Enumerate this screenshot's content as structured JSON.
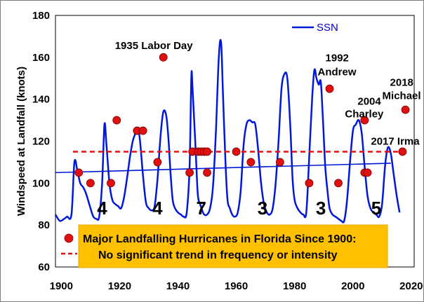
{
  "colors": {
    "ssn": "#0018d8",
    "points": "#e01010",
    "trend": "#0018d8",
    "mean": "#e01010",
    "legend_box": "#ffc000"
  },
  "chart_data": {
    "type": "scatter",
    "title": "",
    "xlabel": "",
    "ylabel": "Windspeed at Landfall (knots)",
    "xlim": [
      1898,
      2021
    ],
    "ylim": [
      60,
      180
    ],
    "xticks": [
      1900,
      1920,
      1940,
      1960,
      1980,
      2000,
      2020
    ],
    "yticks": [
      60,
      80,
      100,
      120,
      140,
      160,
      180
    ],
    "hurricanes": [
      {
        "year": 1906,
        "windspeed": 105
      },
      {
        "year": 1910,
        "windspeed": 100
      },
      {
        "year": 1917,
        "windspeed": 100
      },
      {
        "year": 1919,
        "windspeed": 130
      },
      {
        "year": 1926,
        "windspeed": 125
      },
      {
        "year": 1928,
        "windspeed": 125
      },
      {
        "year": 1933,
        "windspeed": 110
      },
      {
        "year": 1935,
        "windspeed": 160
      },
      {
        "year": 1944,
        "windspeed": 105
      },
      {
        "year": 1945,
        "windspeed": 115
      },
      {
        "year": 1947,
        "windspeed": 115
      },
      {
        "year": 1948,
        "windspeed": 115
      },
      {
        "year": 1949,
        "windspeed": 115
      },
      {
        "year": 1950,
        "windspeed": 115
      },
      {
        "year": 1950,
        "windspeed": 105
      },
      {
        "year": 1960,
        "windspeed": 115
      },
      {
        "year": 1965,
        "windspeed": 110
      },
      {
        "year": 1975,
        "windspeed": 110
      },
      {
        "year": 1985,
        "windspeed": 100
      },
      {
        "year": 1992,
        "windspeed": 145
      },
      {
        "year": 1995,
        "windspeed": 100
      },
      {
        "year": 2004,
        "windspeed": 130
      },
      {
        "year": 2004,
        "windspeed": 105
      },
      {
        "year": 2005,
        "windspeed": 105
      },
      {
        "year": 2017,
        "windspeed": 115
      },
      {
        "year": 2018,
        "windspeed": 135
      }
    ],
    "mean_line": {
      "y": 115,
      "x_start": 1904,
      "x_end": 2019
    },
    "trend_line": {
      "x": [
        1898,
        2013
      ],
      "y": [
        105,
        109.5
      ]
    },
    "ssn_series": {
      "name": "SSN",
      "x": [
        1898,
        1899.5,
        1901,
        1902,
        1903.5,
        1904.5,
        1905.5,
        1906.5,
        1907.5,
        1908.5,
        1910,
        1911,
        1912,
        1913,
        1914,
        1914.8,
        1915.5,
        1916.5,
        1917.5,
        1918.5,
        1919.5,
        1920.5,
        1921.5,
        1922.5,
        1923.5,
        1924.5,
        1925.5,
        1926.3,
        1927,
        1928,
        1929,
        1930,
        1931,
        1932,
        1933,
        1934,
        1935,
        1936,
        1936.8,
        1937.5,
        1938.2,
        1939,
        1940,
        1941,
        1942,
        1943,
        1944,
        1944.6,
        1945,
        1946,
        1946.8,
        1947.6,
        1948.3,
        1949,
        1950,
        1951,
        1952,
        1953,
        1954,
        1954.8,
        1955.5,
        1956.3,
        1957,
        1957.8,
        1958.6,
        1959.5,
        1960.5,
        1961.5,
        1962.5,
        1963.5,
        1964.5,
        1965.5,
        1966.5,
        1967.5,
        1968.5,
        1969.5,
        1970.5,
        1971.5,
        1972.5,
        1973.5,
        1974.5,
        1975.5,
        1976.5,
        1977.5,
        1978.5,
        1979.3,
        1980,
        1981,
        1982,
        1983,
        1984,
        1985,
        1986,
        1986.8,
        1987.5,
        1988.3,
        1989,
        1989.8,
        1990.5,
        1991.3,
        1992,
        1993,
        1994,
        1995,
        1996,
        1997,
        1998,
        1999,
        2000,
        2001,
        2002,
        2003,
        2004,
        2005,
        2006,
        2007,
        2008,
        2009,
        2010,
        2011,
        2012,
        2013,
        2014,
        2015,
        2016
      ],
      "values": [
        85,
        82,
        83,
        84,
        85,
        110,
        106,
        100,
        98,
        95,
        88,
        84,
        83,
        84,
        100,
        128,
        118,
        100,
        92,
        90,
        89,
        88,
        93,
        102,
        112,
        120,
        124,
        126,
        120,
        104,
        91,
        88,
        87,
        89,
        102,
        122,
        134,
        132,
        120,
        104,
        92,
        88,
        86,
        85,
        84,
        86,
        108,
        151,
        145,
        118,
        95,
        90,
        87,
        85,
        85,
        88,
        98,
        124,
        160,
        167,
        140,
        110,
        92,
        88,
        85,
        84,
        86,
        96,
        118,
        128,
        130,
        129,
        128,
        116,
        100,
        90,
        86,
        85,
        88,
        100,
        120,
        145,
        152,
        150,
        128,
        102,
        92,
        88,
        86,
        85,
        86,
        112,
        140,
        154,
        150,
        147,
        148,
        128,
        108,
        96,
        88,
        85,
        84,
        83,
        82,
        82,
        92,
        110,
        125,
        128,
        130,
        124,
        108,
        94,
        88,
        86,
        85,
        84,
        90,
        108,
        117,
        114,
        104,
        94,
        86
      ]
    },
    "annotations": [
      {
        "text": "1935 Labor Day",
        "year": 1935,
        "windspeed": 160
      },
      {
        "text": "1992",
        "year": 1992,
        "windspeed": 145
      },
      {
        "text": "Andrew",
        "year": 1992,
        "windspeed": 145
      },
      {
        "text": "2004",
        "year": 2004,
        "windspeed": 130
      },
      {
        "text": "Charley",
        "year": 2004,
        "windspeed": 130
      },
      {
        "text": "2017 Irma",
        "year": 2017,
        "windspeed": 115
      },
      {
        "text": "2018",
        "year": 2018,
        "windspeed": 135
      },
      {
        "text": "Michael",
        "year": 2018,
        "windspeed": 135
      }
    ],
    "cycle_counts": [
      {
        "label": "4",
        "year": 1914
      },
      {
        "label": "4",
        "year": 1933
      },
      {
        "label": "7",
        "year": 1948
      },
      {
        "label": "3",
        "year": 1969
      },
      {
        "label": "3",
        "year": 1989
      },
      {
        "label": "5",
        "year": 2008
      }
    ],
    "legend": {
      "ssn_label": "SSN",
      "points_label": "Major Landfalling Hurricanes in Florida Since 1900:",
      "line_label": "No significant trend in frequency or intensity"
    }
  }
}
